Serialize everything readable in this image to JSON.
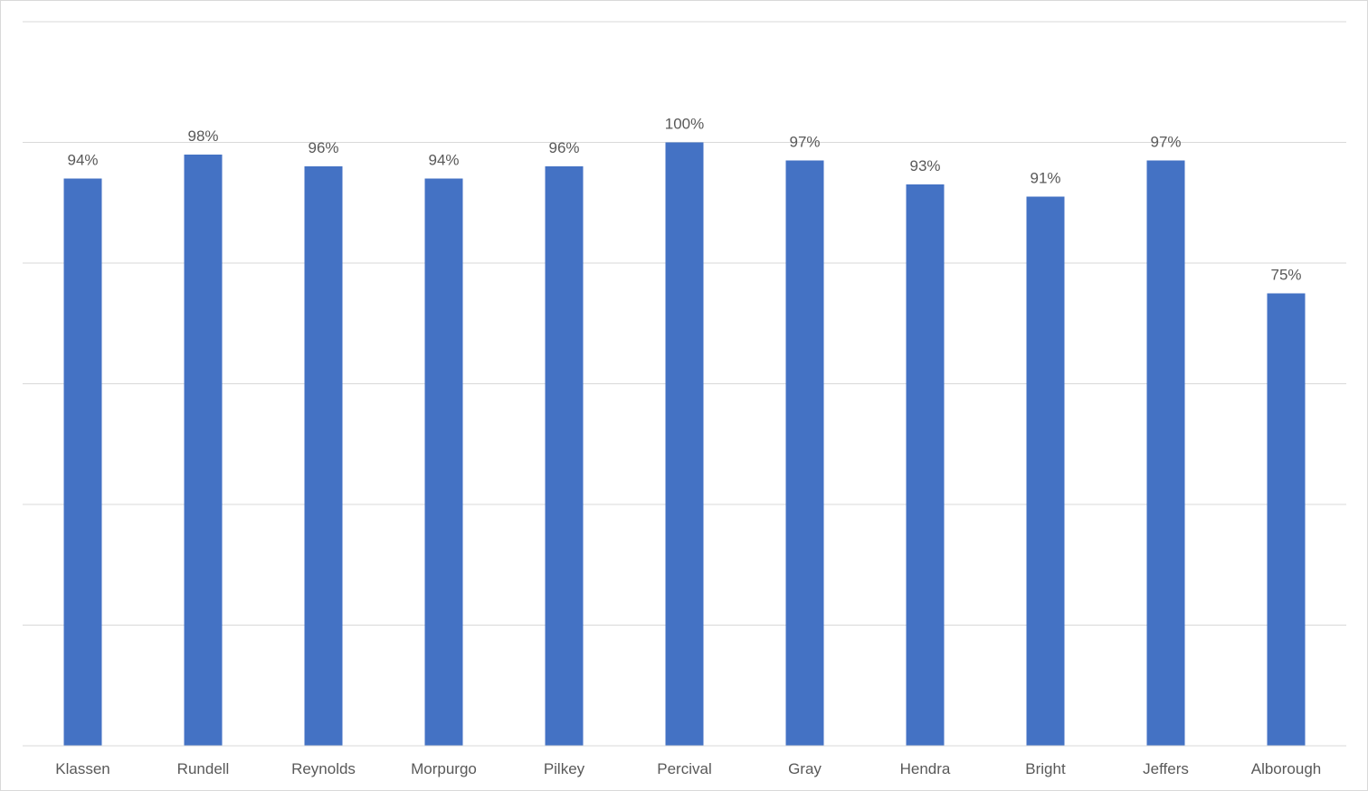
{
  "chart_data": {
    "type": "bar",
    "title": "",
    "xlabel": "",
    "ylabel": "",
    "categories": [
      "Klassen",
      "Rundell",
      "Reynolds",
      "Morpurgo",
      "Pilkey",
      "Percival",
      "Gray",
      "Hendra",
      "Bright",
      "Jeffers",
      "Alborough"
    ],
    "values": [
      94,
      98,
      96,
      94,
      96,
      100,
      97,
      93,
      91,
      97,
      75
    ],
    "data_labels": [
      "94%",
      "98%",
      "96%",
      "94%",
      "96%",
      "100%",
      "97%",
      "93%",
      "91%",
      "97%",
      "75%"
    ],
    "ylim": [
      0,
      120
    ],
    "y_gridlines": [
      0,
      20,
      40,
      60,
      80,
      100,
      120
    ],
    "y_tick_labels_shown": false,
    "grid": true,
    "legend": "none",
    "bar_color": "#4472C4"
  }
}
